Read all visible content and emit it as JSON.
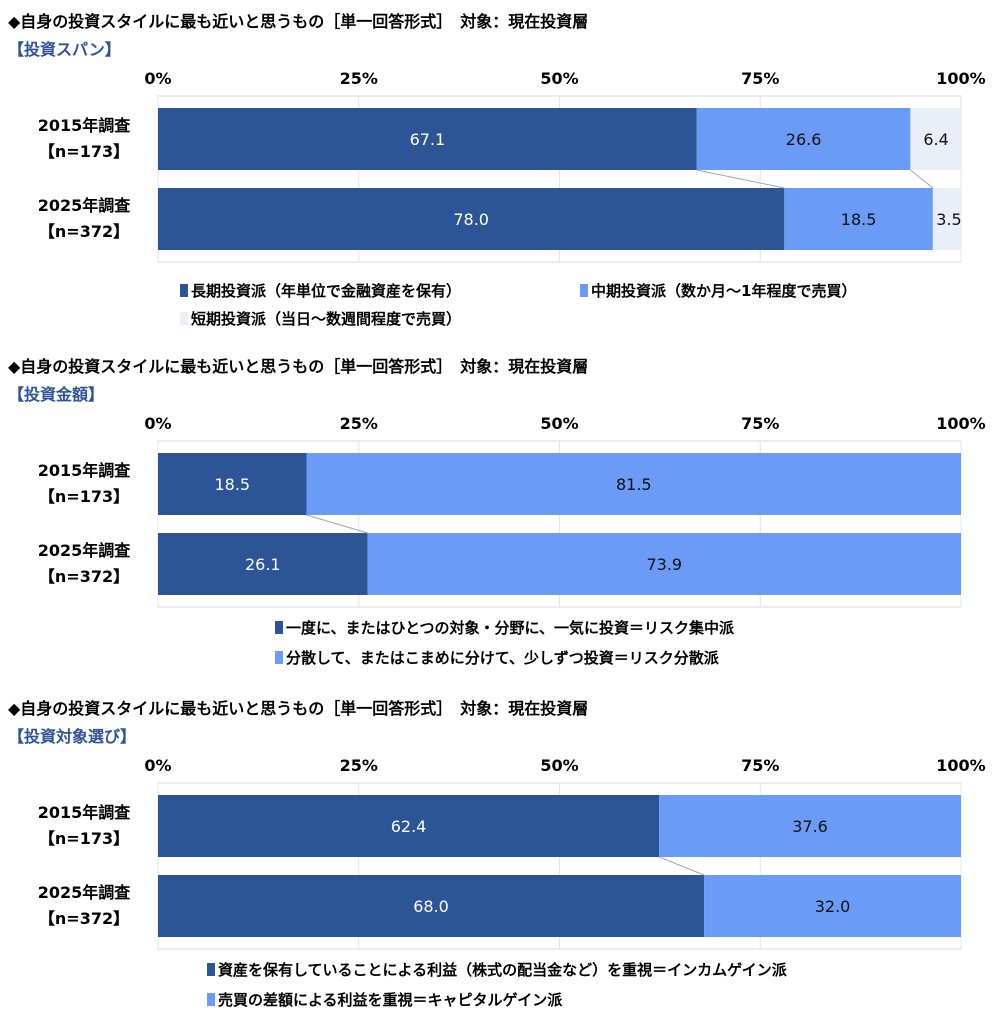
{
  "chart_data": [
    {
      "type": "bar",
      "stacked": true,
      "orientation": "horizontal",
      "title": "◆自身の投資スタイルに最も近いと思うもの［単一回答形式］　対象：現在投資層",
      "subtitle": "【投資スパン】",
      "categories": [
        [
          "2015年調査",
          "【n=173】"
        ],
        [
          "2025年調査",
          "【n=372】"
        ]
      ],
      "xticks": [
        "0%",
        "25%",
        "50%",
        "75%",
        "100%"
      ],
      "xlim": [
        0,
        100
      ],
      "legend_position": "bottom",
      "series": [
        {
          "name": "長期投資派（年単位で金融資産を保有）",
          "values": [
            67.1,
            78.0
          ],
          "labels": [
            "67.1",
            "78.0"
          ],
          "color": "#2B5597"
        },
        {
          "name": "中期投資派（数か月～1年程度で売買）",
          "values": [
            26.6,
            18.5
          ],
          "labels": [
            "26.6",
            "18.5"
          ],
          "color": "#6A9CF7"
        },
        {
          "name": "短期投資派（当日～数週間程度で売買）",
          "values": [
            6.4,
            3.5
          ],
          "labels": [
            "6.4",
            "3.5"
          ],
          "color": "#E9EEF8"
        }
      ]
    },
    {
      "type": "bar",
      "stacked": true,
      "orientation": "horizontal",
      "title": "◆自身の投資スタイルに最も近いと思うもの［単一回答形式］　対象：現在投資層",
      "subtitle": "【投資金額】",
      "categories": [
        [
          "2015年調査",
          "【n=173】"
        ],
        [
          "2025年調査",
          "【n=372】"
        ]
      ],
      "xticks": [
        "0%",
        "25%",
        "50%",
        "75%",
        "100%"
      ],
      "xlim": [
        0,
        100
      ],
      "legend_position": "bottom",
      "series": [
        {
          "name": "一度に、またはひとつの対象・分野に、一気に投資＝リスク集中派",
          "values": [
            18.5,
            26.1
          ],
          "labels": [
            "18.5",
            "26.1"
          ],
          "color": "#2B5597"
        },
        {
          "name": "分散して、またはこまめに分けて、少しずつ投資＝リスク分散派",
          "values": [
            81.5,
            73.9
          ],
          "labels": [
            "81.5",
            "73.9"
          ],
          "color": "#6A9CF7"
        }
      ]
    },
    {
      "type": "bar",
      "stacked": true,
      "orientation": "horizontal",
      "title": "◆自身の投資スタイルに最も近いと思うもの［単一回答形式］　対象：現在投資層",
      "subtitle": "【投資対象選び】",
      "categories": [
        [
          "2015年調査",
          "【n=173】"
        ],
        [
          "2025年調査",
          "【n=372】"
        ]
      ],
      "xticks": [
        "0%",
        "25%",
        "50%",
        "75%",
        "100%"
      ],
      "xlim": [
        0,
        100
      ],
      "legend_position": "bottom",
      "series": [
        {
          "name": "資産を保有していることによる利益（株式の配当金など）を重視＝インカムゲイン派",
          "values": [
            62.4,
            68.0
          ],
          "labels": [
            "62.4",
            "68.0"
          ],
          "color": "#2B5597"
        },
        {
          "name": "売買の差額による利益を重視＝キャピタルゲイン派",
          "values": [
            37.6,
            32.0
          ],
          "labels": [
            "37.6",
            "32.0"
          ],
          "color": "#6A9CF7"
        }
      ]
    }
  ]
}
